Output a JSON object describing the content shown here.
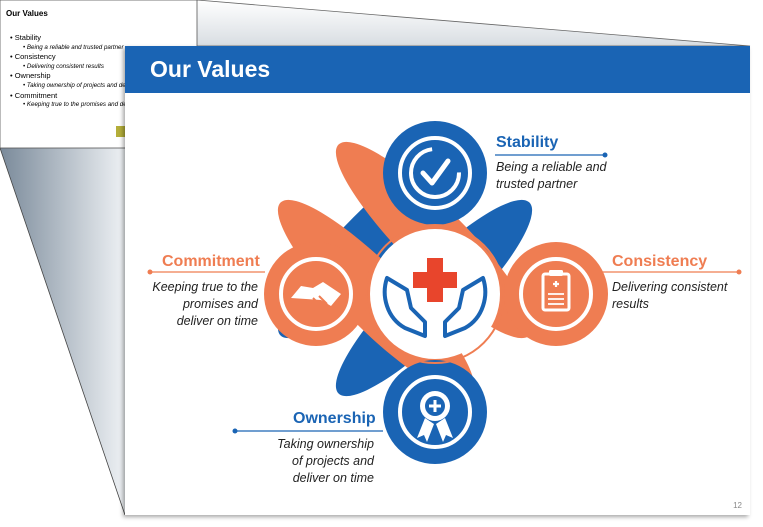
{
  "outline": {
    "title": "Our Values",
    "items": [
      {
        "label": "Stability",
        "sub": "Being a reliable and trusted partner"
      },
      {
        "label": "Consistency",
        "sub": "Delivering consistent results"
      },
      {
        "label": "Ownership",
        "sub": "Taking ownership of projects and deliver on time"
      },
      {
        "label": "Commitment",
        "sub": "Keeping true to the promises and deliver on time"
      }
    ]
  },
  "slide": {
    "title": "Our Values",
    "page_number": "12",
    "values": {
      "stability": {
        "heading": "Stability",
        "text": "Being a reliable and\ntrusted partner",
        "icon": "check-circle-icon"
      },
      "consistency": {
        "heading": "Consistency",
        "text": "Delivering consistent\nresults",
        "icon": "clipboard-icon"
      },
      "ownership": {
        "heading": "Ownership",
        "text": "Taking ownership\nof projects and\ndeliver on time",
        "icon": "award-badge-icon"
      },
      "commitment": {
        "heading": "Commitment",
        "text": "Keeping true to the\npromises and\ndeliver on time",
        "icon": "handshake-icon"
      }
    },
    "center_icon": "hands-medical-cross-icon"
  },
  "colors": {
    "blue": "#1a64b4",
    "orange": "#ef7d52",
    "banner": "#1a64b4",
    "cross": "#e8452c"
  }
}
